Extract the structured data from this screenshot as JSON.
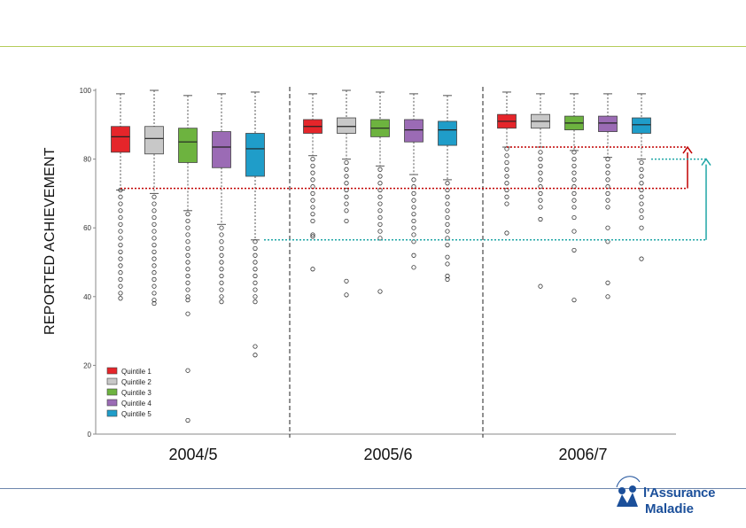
{
  "page": {
    "ylabel": "REPORTED ACHIEVEMENT",
    "brand_line1": "l'Assurance",
    "brand_line2": "Maladie"
  },
  "colors": {
    "q1": "#e5252a",
    "q2": "#c8c8c8",
    "q3": "#6db33f",
    "q4": "#9b6bb5",
    "q5": "#1f9dc9",
    "red_arrow": "#c00000",
    "teal_arrow": "#1fa6a6",
    "top_rule": "#b5cc5a",
    "brand": "#1b4f9a"
  },
  "chart_data": {
    "type": "box",
    "ylabel": "REPORTED ACHIEVEMENT",
    "ylim": [
      0,
      100
    ],
    "yticks": [
      0,
      20,
      40,
      60,
      80,
      100
    ],
    "groups": [
      "2004/5",
      "2005/6",
      "2006/7"
    ],
    "series_names": [
      "Quintile 1",
      "Quintile 2",
      "Quintile 3",
      "Quintile 4",
      "Quintile 5"
    ],
    "legend_position": "bottom-left",
    "boxes": [
      [
        {
          "q1": 82,
          "median": 86.5,
          "q3": 89.5,
          "low": 71,
          "high": 99
        },
        {
          "q1": 81.5,
          "median": 86,
          "q3": 89.5,
          "low": 70,
          "high": 100
        },
        {
          "q1": 79,
          "median": 85,
          "q3": 89,
          "low": 65,
          "high": 98.5
        },
        {
          "q1": 77.5,
          "median": 83.5,
          "q3": 88,
          "low": 61,
          "high": 99
        },
        {
          "q1": 75,
          "median": 83,
          "q3": 87.5,
          "low": 56.5,
          "high": 99.5
        }
      ],
      [
        {
          "q1": 87.5,
          "median": 89.5,
          "q3": 91.5,
          "low": 81,
          "high": 99
        },
        {
          "q1": 87.5,
          "median": 89.5,
          "q3": 92,
          "low": 80,
          "high": 100
        },
        {
          "q1": 86.5,
          "median": 89,
          "q3": 91.5,
          "low": 78,
          "high": 99.5
        },
        {
          "q1": 85,
          "median": 88.5,
          "q3": 91.5,
          "low": 75.5,
          "high": 99
        },
        {
          "q1": 84,
          "median": 88.5,
          "q3": 91,
          "low": 74,
          "high": 98.5
        }
      ],
      [
        {
          "q1": 89,
          "median": 91,
          "q3": 93,
          "low": 83.5,
          "high": 99.5
        },
        {
          "q1": 89,
          "median": 91,
          "q3": 93,
          "low": 83.5,
          "high": 99
        },
        {
          "q1": 88.5,
          "median": 90.5,
          "q3": 92.5,
          "low": 82.5,
          "high": 99
        },
        {
          "q1": 88,
          "median": 90.5,
          "q3": 92.5,
          "low": 80.5,
          "high": 99
        },
        {
          "q1": 87.5,
          "median": 90,
          "q3": 92,
          "low": 80,
          "high": 99
        }
      ]
    ],
    "outliers": [
      [
        [
          71,
          69,
          67,
          65,
          63,
          61,
          59,
          57,
          55,
          53,
          51,
          49,
          47,
          45,
          43,
          41,
          39.5
        ],
        [
          69,
          67,
          65,
          63,
          61,
          59,
          57,
          55,
          53,
          51,
          49,
          47,
          45,
          43,
          41,
          39,
          38
        ],
        [
          64,
          62,
          60,
          58,
          56,
          54,
          52,
          50,
          48,
          46,
          44,
          42,
          40,
          39,
          35,
          18.5,
          4
        ],
        [
          60,
          58,
          56,
          54,
          52,
          50,
          48,
          46,
          44,
          42,
          40,
          38.5
        ],
        [
          56,
          54,
          52,
          50,
          48,
          46,
          44,
          42,
          40,
          38.5,
          25.5,
          23
        ]
      ],
      [
        [
          80,
          78,
          76,
          74,
          72,
          70,
          68,
          66,
          64,
          62,
          58,
          57.5,
          48
        ],
        [
          79,
          77,
          75,
          73,
          71,
          69,
          67,
          65,
          62,
          44.5,
          40.5
        ],
        [
          77,
          75,
          73,
          71,
          69,
          67,
          65,
          63,
          61,
          59,
          57,
          41.5
        ],
        [
          74,
          72,
          70,
          68,
          66,
          64,
          62,
          60,
          58,
          56,
          52,
          48.5
        ],
        [
          73,
          71,
          69,
          67,
          65,
          63,
          61,
          59,
          57,
          55,
          51.5,
          49.5,
          46,
          45
        ]
      ],
      [
        [
          83,
          81,
          79,
          77,
          75,
          73,
          71,
          69,
          67,
          58.5
        ],
        [
          82,
          80,
          78,
          76,
          74,
          72,
          70,
          68,
          66,
          62.5,
          43
        ],
        [
          82,
          80,
          78,
          76,
          74,
          72,
          70,
          68,
          66,
          63,
          59,
          53.5,
          39
        ],
        [
          80,
          78,
          76,
          74,
          72,
          70,
          68,
          66,
          60,
          56,
          44,
          40
        ],
        [
          79,
          77,
          75,
          73,
          71,
          69,
          67,
          65,
          63,
          60,
          51
        ]
      ]
    ],
    "annotations": {
      "red_low": 71.5,
      "red_high": 83.5,
      "teal_low": 56.5,
      "teal_high": 80
    }
  }
}
